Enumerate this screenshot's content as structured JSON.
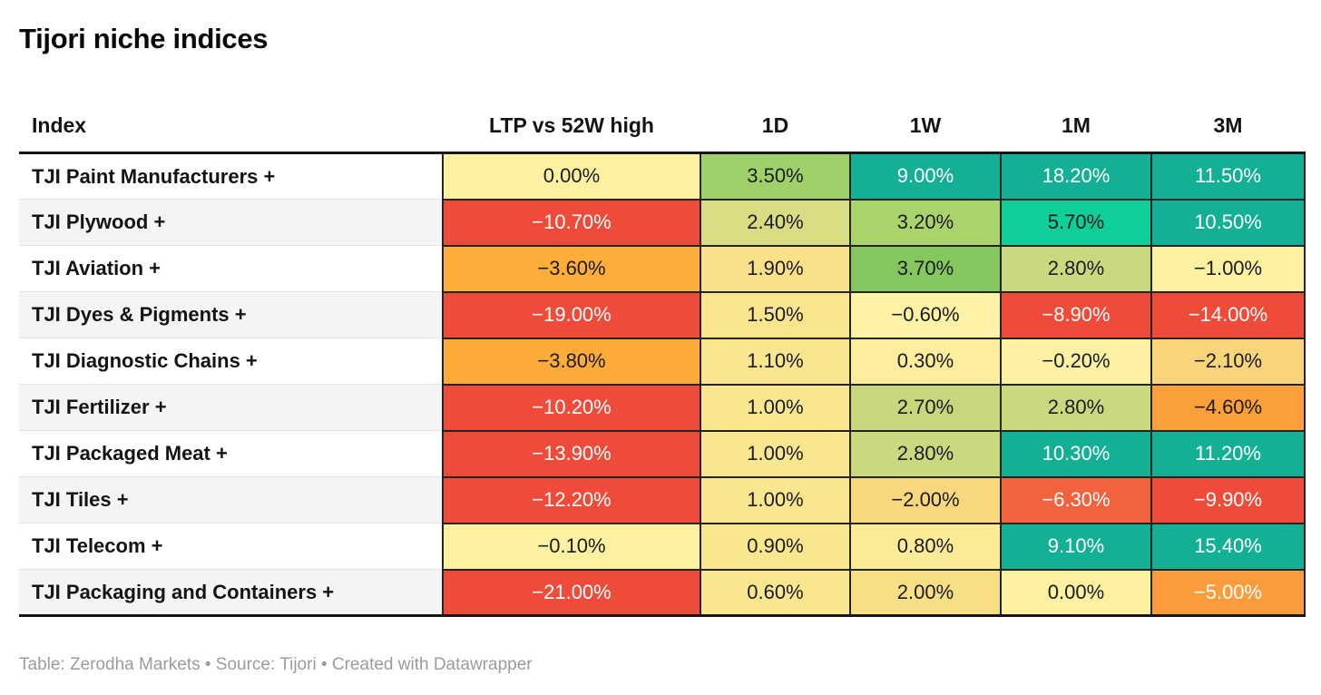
{
  "page": {
    "title": "Tijori niche indices",
    "footer": "Table: Zerodha Markets • Source: Tijori • Created with Datawrapper"
  },
  "table": {
    "columns": [
      "Index",
      "LTP vs 52W high",
      "1D",
      "1W",
      "1M",
      "3M"
    ],
    "rows": [
      {
        "name": "TJI Paint Manufacturers +",
        "cells": [
          {
            "v": "0.00%",
            "bg": "#FCF0A1",
            "fg": "#1b1b1b"
          },
          {
            "v": "3.50%",
            "bg": "#A0D069",
            "fg": "#1b1b1b"
          },
          {
            "v": "9.00%",
            "bg": "#14B095",
            "fg": "#FFFFFF"
          },
          {
            "v": "18.20%",
            "bg": "#14B095",
            "fg": "#FFFFFF"
          },
          {
            "v": "11.50%",
            "bg": "#14B095",
            "fg": "#FFFFFF"
          }
        ]
      },
      {
        "name": "TJI Plywood +",
        "cells": [
          {
            "v": "−10.70%",
            "bg": "#EF4B3B",
            "fg": "#FFFFFF"
          },
          {
            "v": "2.40%",
            "bg": "#D9DC83",
            "fg": "#1b1b1b"
          },
          {
            "v": "3.20%",
            "bg": "#ABD36C",
            "fg": "#1b1b1b"
          },
          {
            "v": "5.70%",
            "bg": "#0FCE9A",
            "fg": "#1b1b1b"
          },
          {
            "v": "10.50%",
            "bg": "#14B095",
            "fg": "#FFFFFF"
          }
        ]
      },
      {
        "name": "TJI Aviation +",
        "cells": [
          {
            "v": "−3.60%",
            "bg": "#FCAD3A",
            "fg": "#1b1b1b"
          },
          {
            "v": "1.90%",
            "bg": "#F8E18A",
            "fg": "#1b1b1b"
          },
          {
            "v": "3.70%",
            "bg": "#84C75F",
            "fg": "#1b1b1b"
          },
          {
            "v": "2.80%",
            "bg": "#C9D97D",
            "fg": "#1b1b1b"
          },
          {
            "v": "−1.00%",
            "bg": "#FCF0A1",
            "fg": "#1b1b1b"
          }
        ]
      },
      {
        "name": "TJI Dyes & Pigments +",
        "cells": [
          {
            "v": "−19.00%",
            "bg": "#EF4B3B",
            "fg": "#FFFFFF"
          },
          {
            "v": "1.50%",
            "bg": "#F9E58D",
            "fg": "#1b1b1b"
          },
          {
            "v": "−0.60%",
            "bg": "#FDF2A5",
            "fg": "#1b1b1b"
          },
          {
            "v": "−8.90%",
            "bg": "#EF4B3B",
            "fg": "#FFFFFF"
          },
          {
            "v": "−14.00%",
            "bg": "#EF4B3B",
            "fg": "#FFFFFF"
          }
        ]
      },
      {
        "name": "TJI Diagnostic Chains +",
        "cells": [
          {
            "v": "−3.80%",
            "bg": "#FCAB39",
            "fg": "#1b1b1b"
          },
          {
            "v": "1.10%",
            "bg": "#F9E68E",
            "fg": "#1b1b1b"
          },
          {
            "v": "0.30%",
            "bg": "#FCEE9D",
            "fg": "#1b1b1b"
          },
          {
            "v": "−0.20%",
            "bg": "#FCF0A2",
            "fg": "#1b1b1b"
          },
          {
            "v": "−2.10%",
            "bg": "#F9D47B",
            "fg": "#1b1b1b"
          }
        ]
      },
      {
        "name": "TJI Fertilizer +",
        "cells": [
          {
            "v": "−10.20%",
            "bg": "#EF4B3B",
            "fg": "#FFFFFF"
          },
          {
            "v": "1.00%",
            "bg": "#F9E78F",
            "fg": "#1b1b1b"
          },
          {
            "v": "2.70%",
            "bg": "#C6D87B",
            "fg": "#1b1b1b"
          },
          {
            "v": "2.80%",
            "bg": "#C9D97D",
            "fg": "#1b1b1b"
          },
          {
            "v": "−4.60%",
            "bg": "#FB9F3B",
            "fg": "#1b1b1b"
          }
        ]
      },
      {
        "name": "TJI Packaged Meat +",
        "cells": [
          {
            "v": "−13.90%",
            "bg": "#EF4B3B",
            "fg": "#FFFFFF"
          },
          {
            "v": "1.00%",
            "bg": "#F9E78F",
            "fg": "#1b1b1b"
          },
          {
            "v": "2.80%",
            "bg": "#C9D97D",
            "fg": "#1b1b1b"
          },
          {
            "v": "10.30%",
            "bg": "#14B095",
            "fg": "#FFFFFF"
          },
          {
            "v": "11.20%",
            "bg": "#14B095",
            "fg": "#FFFFFF"
          }
        ]
      },
      {
        "name": "TJI Tiles +",
        "cells": [
          {
            "v": "−12.20%",
            "bg": "#EF4B3B",
            "fg": "#FFFFFF"
          },
          {
            "v": "1.00%",
            "bg": "#F9E78F",
            "fg": "#1b1b1b"
          },
          {
            "v": "−2.00%",
            "bg": "#F9D77E",
            "fg": "#1b1b1b"
          },
          {
            "v": "−6.30%",
            "bg": "#F2633D",
            "fg": "#FFFFFF"
          },
          {
            "v": "−9.90%",
            "bg": "#EF4B3B",
            "fg": "#FFFFFF"
          }
        ]
      },
      {
        "name": "TJI Telecom +",
        "cells": [
          {
            "v": "−0.10%",
            "bg": "#FCF0A1",
            "fg": "#1b1b1b"
          },
          {
            "v": "0.90%",
            "bg": "#F9E78F",
            "fg": "#1b1b1b"
          },
          {
            "v": "0.80%",
            "bg": "#FBEB96",
            "fg": "#1b1b1b"
          },
          {
            "v": "9.10%",
            "bg": "#14B095",
            "fg": "#FFFFFF"
          },
          {
            "v": "15.40%",
            "bg": "#14B095",
            "fg": "#FFFFFF"
          }
        ]
      },
      {
        "name": "TJI Packaging and Containers +",
        "cells": [
          {
            "v": "−21.00%",
            "bg": "#EF4B3B",
            "fg": "#FFFFFF"
          },
          {
            "v": "0.60%",
            "bg": "#F9E78F",
            "fg": "#1b1b1b"
          },
          {
            "v": "2.00%",
            "bg": "#F8DF86",
            "fg": "#1b1b1b"
          },
          {
            "v": "0.00%",
            "bg": "#FCF0A1",
            "fg": "#1b1b1b"
          },
          {
            "v": "−5.00%",
            "bg": "#FA9C3C",
            "fg": "#FFFFFF"
          }
        ]
      }
    ]
  },
  "chart_data": {
    "type": "table",
    "title": "Tijori niche indices",
    "columns": [
      "Index",
      "LTP vs 52W high",
      "1D",
      "1W",
      "1M",
      "3M"
    ],
    "units": "%",
    "rows": [
      [
        "TJI Paint Manufacturers +",
        0.0,
        3.5,
        9.0,
        18.2,
        11.5
      ],
      [
        "TJI Plywood +",
        -10.7,
        2.4,
        3.2,
        5.7,
        10.5
      ],
      [
        "TJI Aviation +",
        -3.6,
        1.9,
        3.7,
        2.8,
        -1.0
      ],
      [
        "TJI Dyes & Pigments +",
        -19.0,
        1.5,
        -0.6,
        -8.9,
        -14.0
      ],
      [
        "TJI Diagnostic Chains +",
        -3.8,
        1.1,
        0.3,
        -0.2,
        -2.1
      ],
      [
        "TJI Fertilizer +",
        -10.2,
        1.0,
        2.7,
        2.8,
        -4.6
      ],
      [
        "TJI Packaged Meat +",
        -13.9,
        1.0,
        2.8,
        10.3,
        11.2
      ],
      [
        "TJI Tiles +",
        -12.2,
        1.0,
        -2.0,
        -6.3,
        -9.9
      ],
      [
        "TJI Telecom +",
        -0.1,
        0.9,
        0.8,
        9.1,
        15.4
      ],
      [
        "TJI Packaging and Containers +",
        -21.0,
        0.6,
        2.0,
        0.0,
        -5.0
      ]
    ],
    "color_scale": {
      "type": "heatmap-diverging",
      "strong_negative": "#EF4B3B",
      "negative": "#FCAD3A",
      "neutral": "#FCF0A1",
      "positive": "#A0D069",
      "strong_positive": "#14B095"
    }
  }
}
